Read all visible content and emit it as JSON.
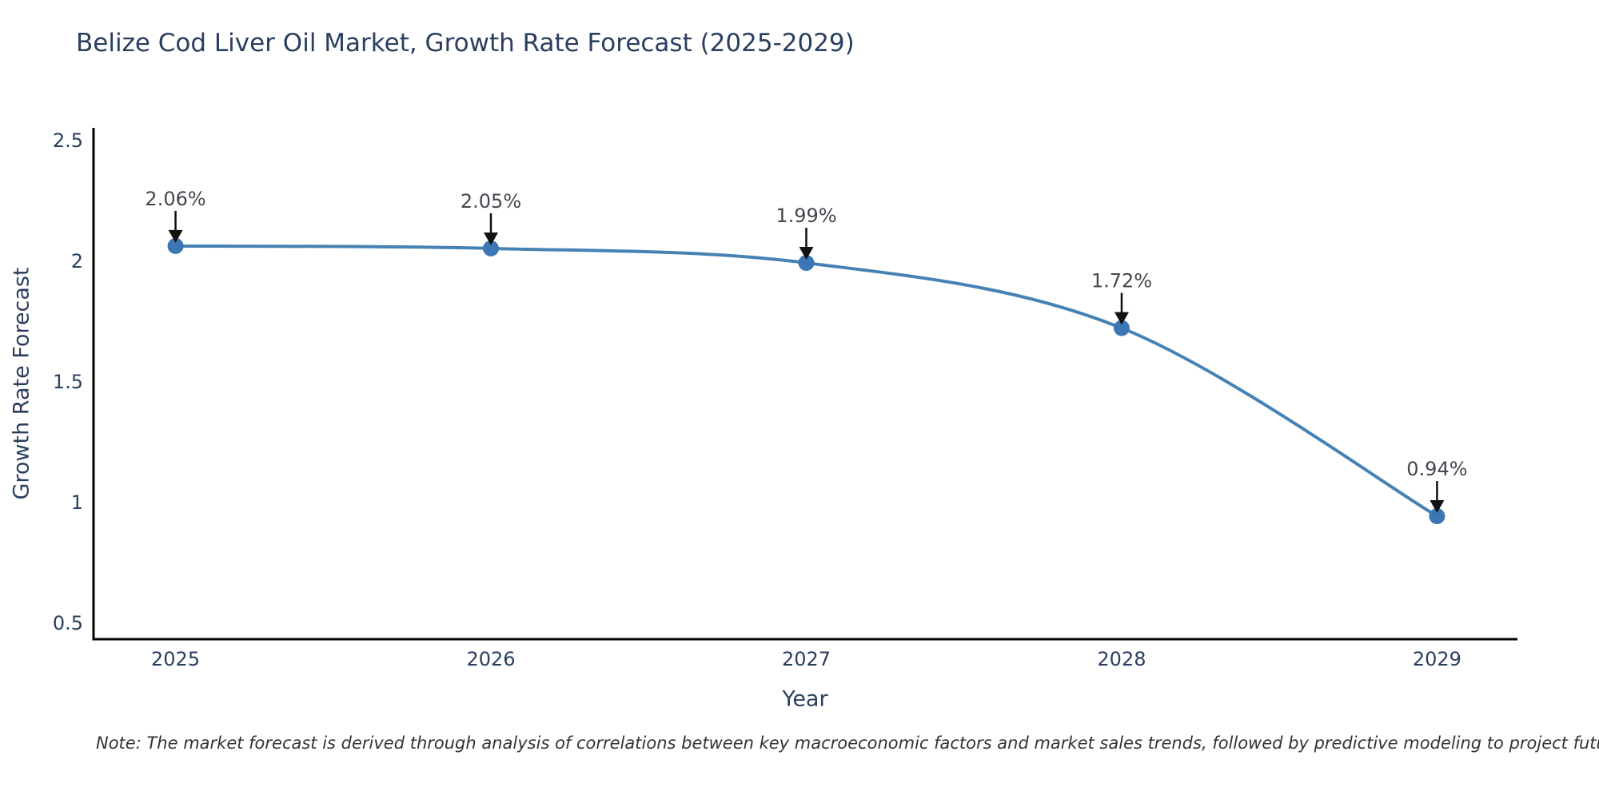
{
  "title": "Belize Cod Liver Oil Market, Growth Rate Forecast (2025-2029)",
  "note": "Note: The market forecast is derived through analysis of correlations between key macroeconomic factors and market sales trends, followed by predictive modeling to project future sales",
  "chart_data": {
    "type": "line",
    "title": "Belize Cod Liver Oil Market, Growth Rate Forecast (2025-2029)",
    "xlabel": "Year",
    "ylabel": "Growth Rate Forecast",
    "x": [
      2025,
      2026,
      2027,
      2028,
      2029
    ],
    "values": [
      2.06,
      2.05,
      1.99,
      1.72,
      0.94
    ],
    "point_labels": [
      "2.06%",
      "2.05%",
      "1.99%",
      "1.72%",
      "0.94%"
    ],
    "xticks": [
      2025,
      2026,
      2027,
      2028,
      2029
    ],
    "xtick_labels": [
      "2025",
      "2026",
      "2027",
      "2028",
      "2029"
    ],
    "yticks": [
      0.5,
      1,
      1.5,
      2,
      2.5
    ],
    "ytick_labels": [
      "0.5",
      "1",
      "1.5",
      "2",
      "2.5"
    ],
    "xlim": [
      2024.74,
      2029.255
    ],
    "ylim": [
      0.43,
      2.55
    ],
    "grid": false,
    "legend": "none",
    "line_shape": "spline",
    "colors": {
      "line": "#4682b4",
      "marker": "#3c76b5",
      "axis": "#000000",
      "text": "#2a3f5f",
      "annotation_text": "#43474e",
      "arrow": "#111111",
      "background": "#ffffff"
    }
  }
}
